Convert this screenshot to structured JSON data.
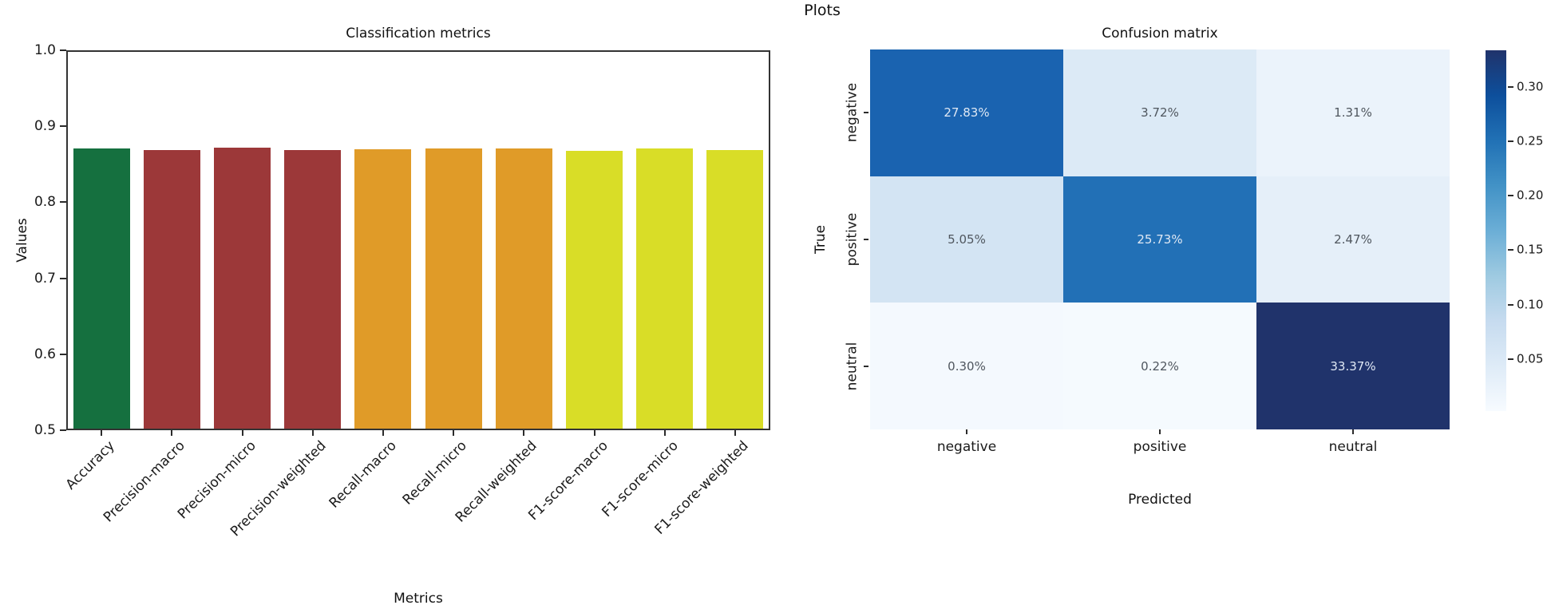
{
  "suptitle": "Plots",
  "colors": {
    "background": "#ffffff",
    "text": "#1a1a1a",
    "spine": "#333333",
    "heatmap_light_cell_text": "#4f565e",
    "heatmap_dark_cell_text": "#dfe8f4"
  },
  "chart_data": [
    {
      "type": "bar",
      "title": "Classification metrics",
      "xlabel": "Metrics",
      "ylabel": "Values",
      "categories": [
        "Accuracy",
        "Precision-macro",
        "Precision-micro",
        "Precision-weighted",
        "Recall-macro",
        "Recall-micro",
        "Recall-weighted",
        "F1-score-macro",
        "F1-score-micro",
        "F1-score-weighted"
      ],
      "values": [
        0.871,
        0.869,
        0.872,
        0.869,
        0.87,
        0.871,
        0.871,
        0.868,
        0.871,
        0.869
      ],
      "bar_colors": [
        "#15703f",
        "#9c3839",
        "#9c3839",
        "#9c3839",
        "#e09b28",
        "#e09b28",
        "#e09b28",
        "#d9dd27",
        "#d9dd27",
        "#d9dd27"
      ],
      "ylim": [
        0.5,
        1.0
      ],
      "yticks": [
        "1.0",
        "0.9",
        "0.8",
        "0.7",
        "0.6",
        "0.5"
      ],
      "ytick_values": [
        1.0,
        0.9,
        0.8,
        0.7,
        0.6,
        0.5
      ],
      "grid": false,
      "legend": null
    },
    {
      "type": "heatmap",
      "title": "Confusion matrix",
      "xlabel": "Predicted",
      "ylabel": "True",
      "x_categories": [
        "negative",
        "positive",
        "neutral"
      ],
      "y_categories": [
        "negative",
        "positive",
        "neutral"
      ],
      "cell_labels": [
        [
          "27.83%",
          "3.72%",
          "1.31%"
        ],
        [
          "5.05%",
          "25.73%",
          "2.47%"
        ],
        [
          "0.30%",
          "0.22%",
          "33.37%"
        ]
      ],
      "cell_values": [
        [
          0.2783,
          0.0372,
          0.0131
        ],
        [
          0.0505,
          0.2573,
          0.0247
        ],
        [
          0.003,
          0.0022,
          0.3337
        ]
      ],
      "cell_colors": [
        [
          "#1a63b0",
          "#dceaf6",
          "#ebf3fb"
        ],
        [
          "#d3e4f3",
          "#2270b6",
          "#e5eff9"
        ],
        [
          "#f4f9fe",
          "#f5fafe",
          "#20336b"
        ]
      ],
      "colorbar": {
        "vmin": 0.0022,
        "vmax": 0.3337,
        "tick_labels": [
          "0.30",
          "0.25",
          "0.20",
          "0.15",
          "0.10",
          "0.05"
        ],
        "tick_values": [
          0.3,
          0.25,
          0.2,
          0.15,
          0.1,
          0.05
        ],
        "gradient_top_to_bottom": [
          "#20336b",
          "#0d4f9c",
          "#2171b5",
          "#4292c6",
          "#6baed6",
          "#9ecae1",
          "#c6dbef",
          "#deebf7",
          "#f7fbff"
        ]
      }
    }
  ]
}
